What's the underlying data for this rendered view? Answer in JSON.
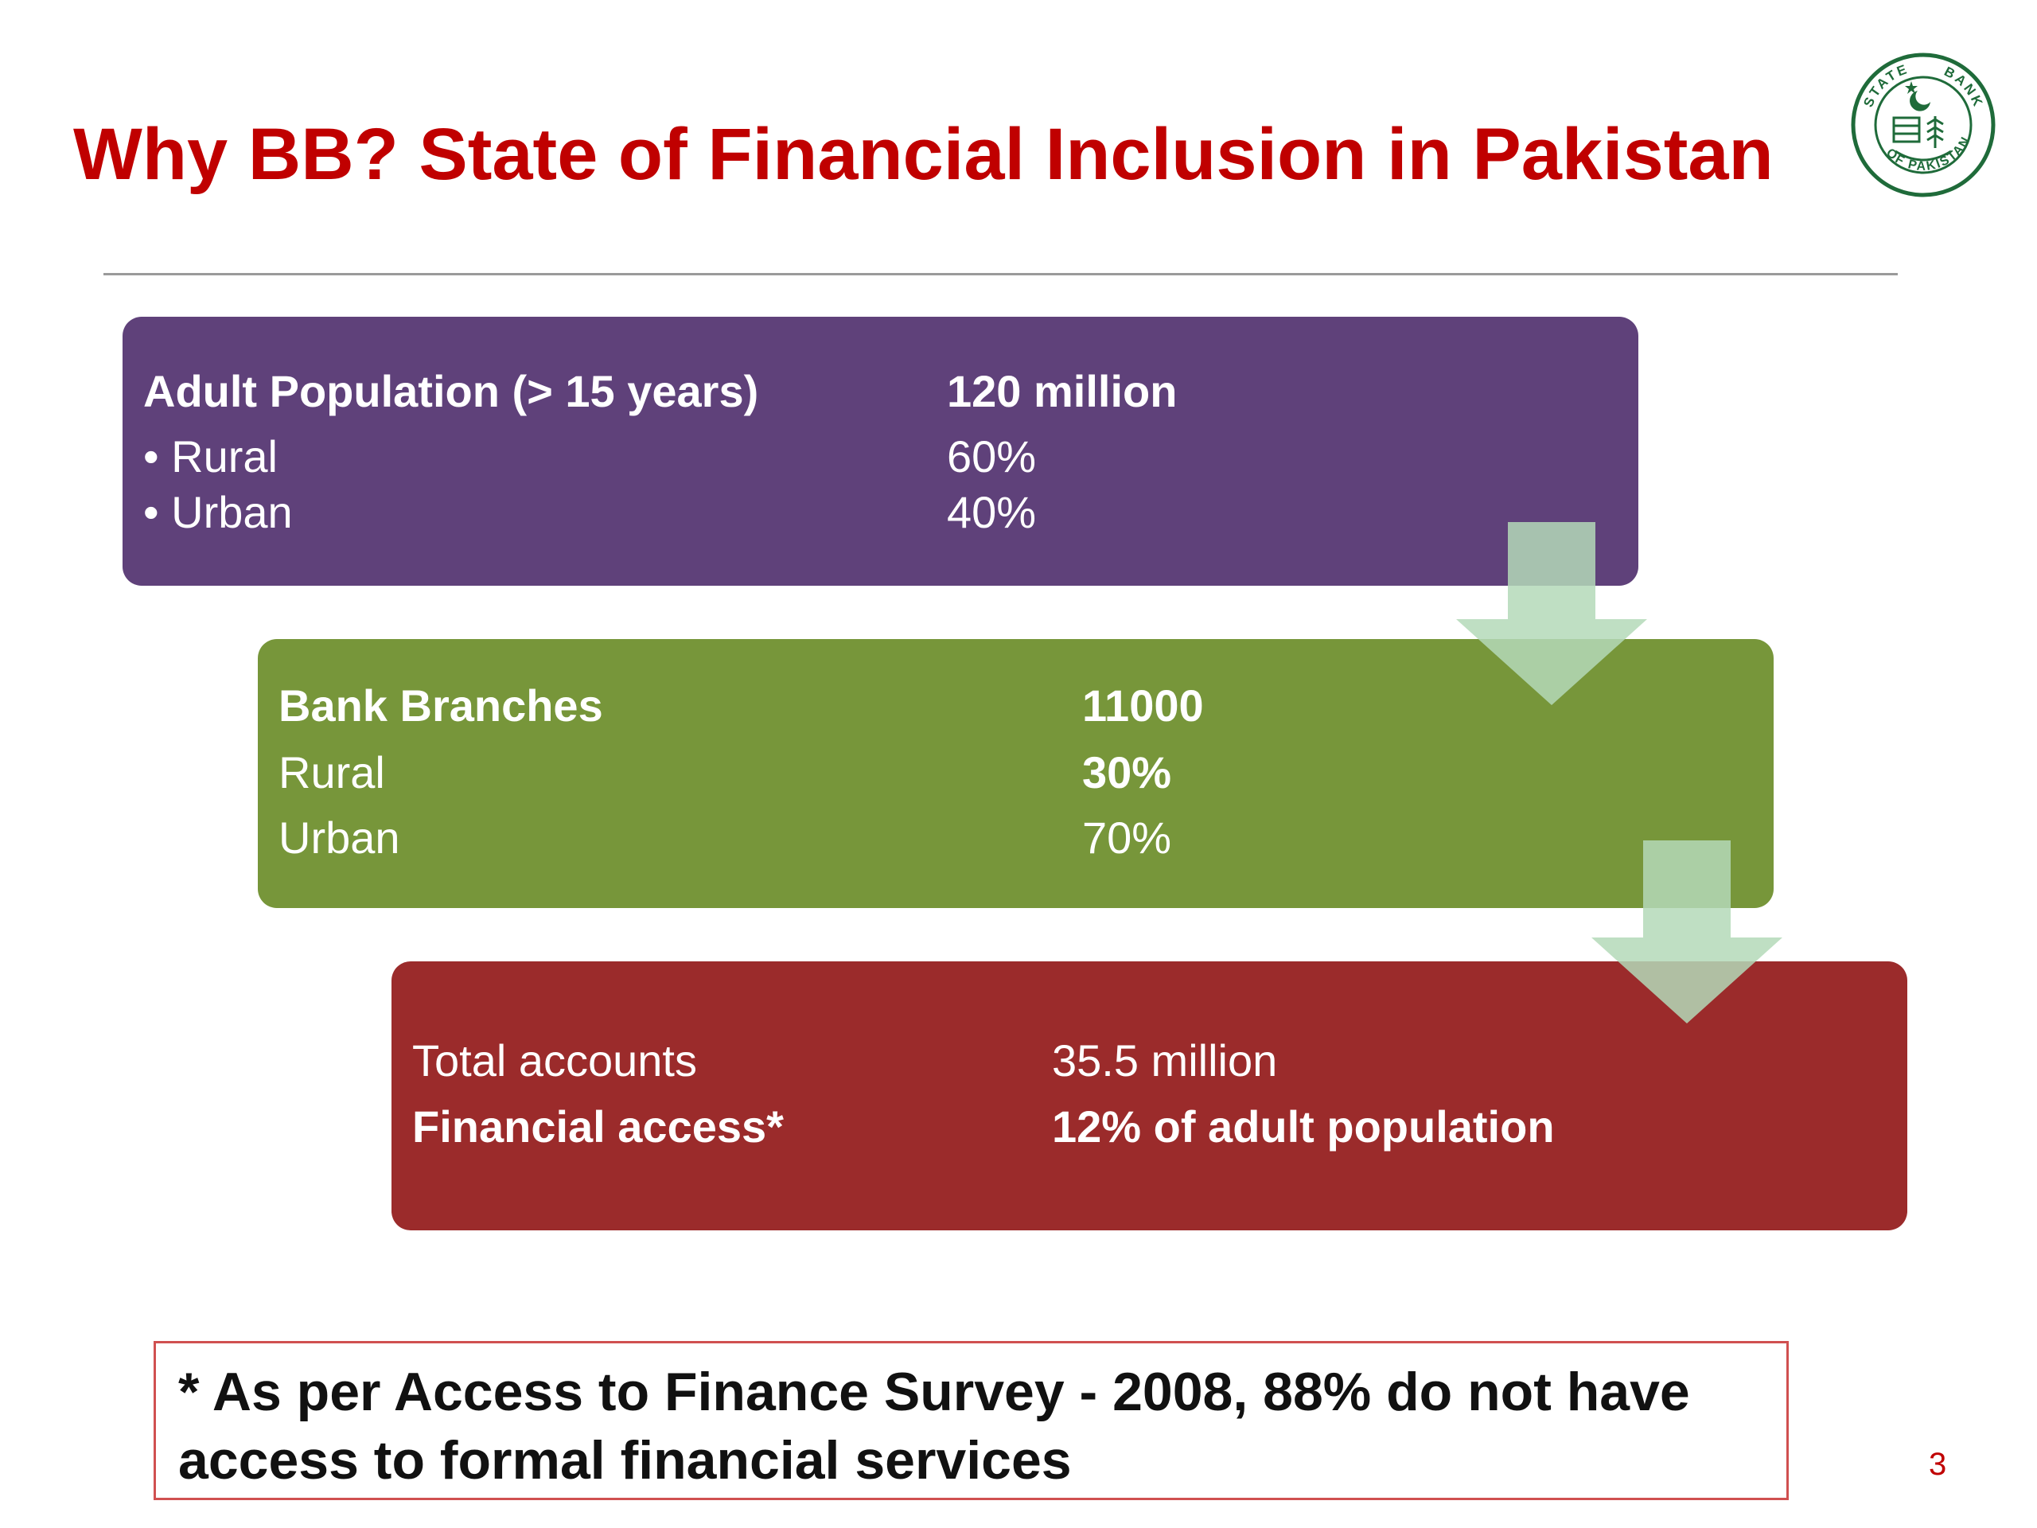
{
  "title": "Why BB? State of Financial Inclusion in Pakistan",
  "logo": {
    "icon": "state-bank-of-pakistan-seal",
    "top_text": "STATE",
    "right_text": "BANK",
    "bottom_text": "OF PAKISTAN",
    "color": "#1f6b3a"
  },
  "boxes": [
    {
      "color": "#5f417a",
      "rows": [
        {
          "label": "Adult Population (> 15 years)",
          "value": "120 million"
        },
        {
          "label": "•  Rural",
          "value": "60%"
        },
        {
          "label": "•  Urban",
          "value": "40%"
        }
      ]
    },
    {
      "color": "#77963a",
      "rows": [
        {
          "label": "Bank Branches",
          "value": "11000"
        },
        {
          "label": "Rural",
          "value": "30%"
        },
        {
          "label": "Urban",
          "value": "70%"
        }
      ]
    },
    {
      "color": "#9b2b2b",
      "rows": [
        {
          "label": "Total accounts",
          "value": "35.5 million"
        },
        {
          "label": "Financial access*",
          "value": "12% of adult population"
        }
      ]
    }
  ],
  "arrow_color": "#b4d9b8",
  "footnote": "* As per Access to Finance Survey - 2008, 88% do not have access to formal financial services",
  "page_number": "3"
}
